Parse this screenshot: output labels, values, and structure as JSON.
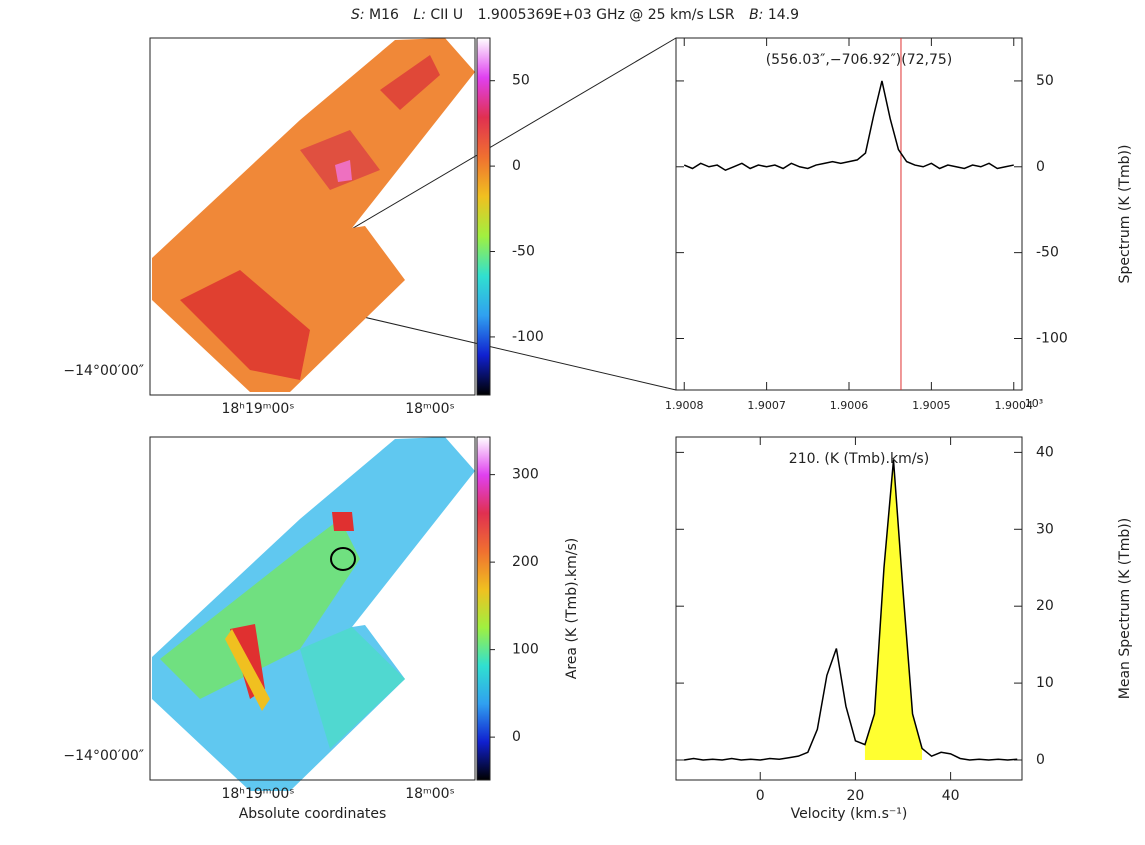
{
  "header": {
    "source_key": "S:",
    "source": "M16",
    "line_key": "L:",
    "line": "CII U",
    "frequency": "1.9005369E+03 GHz @ 25 km/s LSR",
    "beam_key": "B:",
    "beam": "14.9"
  },
  "chart_data": [
    {
      "type": "map",
      "xtick_labels": [
        "18ʰ19ᵐ00ˢ",
        "18ᵐ00ˢ"
      ],
      "ytick_labels": [
        "−14°00′00″"
      ],
      "clim": [
        -134,
        75
      ],
      "cticks": [
        50,
        0,
        -50,
        -100
      ],
      "colormap": [
        "#ffffff",
        "#e040f0",
        "#e03050",
        "#f07030",
        "#f0c020",
        "#a0f040",
        "#30e0d0",
        "#30a0f0",
        "#1020d0",
        "#000000"
      ]
    },
    {
      "type": "line",
      "annotation": "(556.03″,−706.92″)(72,75)",
      "ylabel": "Spectrum (K (Tmb))",
      "color": "#000000",
      "x": [
        1.9008,
        1.90079,
        1.90078,
        1.90077,
        1.90076,
        1.90075,
        1.90074,
        1.90073,
        1.90072,
        1.90071,
        1.9007,
        1.90069,
        1.90068,
        1.90067,
        1.90066,
        1.90065,
        1.90064,
        1.90063,
        1.90062,
        1.90061,
        1.9006,
        1.90059,
        1.90058,
        1.90057,
        1.90056,
        1.90055,
        1.90054,
        1.90053,
        1.90052,
        1.90051,
        1.9005,
        1.90049,
        1.90048,
        1.90047,
        1.90046,
        1.90045,
        1.90044,
        1.90043,
        1.90042,
        1.90041,
        1.9004
      ],
      "values": [
        1,
        -1,
        2,
        0,
        1,
        -2,
        0,
        2,
        -1,
        1,
        0,
        1,
        -1,
        2,
        0,
        -1,
        1,
        2,
        3,
        2,
        3,
        4,
        8,
        30,
        50,
        28,
        10,
        3,
        1,
        0,
        2,
        -1,
        1,
        0,
        -1,
        1,
        0,
        2,
        -1,
        0,
        1
      ],
      "xlim": [
        1.90081,
        1.90039
      ],
      "xticks": [
        1.9008,
        1.9007,
        1.9006,
        1.9005,
        1.9004
      ],
      "xscale_label": "10³",
      "ylim": [
        -130,
        75
      ],
      "yticks": [
        50,
        0,
        -50,
        -100
      ],
      "marker_x": 1.9005369,
      "marker_color": "#e03030"
    },
    {
      "type": "map",
      "xtick_labels": [
        "18ʰ19ᵐ00ˢ",
        "18ᵐ00ˢ"
      ],
      "ytick_labels": [
        "−14°00′00″"
      ],
      "xlabel": "Absolute coordinates",
      "clabel": "Area (K (Tmb).km/s)",
      "clim": [
        -49,
        343
      ],
      "cticks": [
        300,
        200,
        100,
        0
      ],
      "colormap": [
        "#ffffff",
        "#e040f0",
        "#e03050",
        "#f07030",
        "#f0c020",
        "#a0f040",
        "#30e0d0",
        "#30a0f0",
        "#1020d0",
        "#000000"
      ]
    },
    {
      "type": "line",
      "annotation": "210. (K (Tmb).km/s)",
      "xlabel": "Velocity (km.s⁻¹)",
      "ylabel": "Mean Spectrum (K (Tmb))",
      "color": "#000000",
      "x": [
        -16,
        -14,
        -12,
        -10,
        -8,
        -6,
        -4,
        -2,
        0,
        2,
        4,
        6,
        8,
        10,
        12,
        14,
        16,
        18,
        20,
        22,
        24,
        26,
        28,
        30,
        32,
        34,
        36,
        38,
        40,
        42,
        44,
        46,
        48,
        50,
        52,
        54
      ],
      "values": [
        0,
        0.2,
        0,
        0.1,
        0,
        0.2,
        0,
        0.1,
        0,
        0.2,
        0.1,
        0.3,
        0.5,
        1,
        4,
        11,
        14.5,
        7,
        2.5,
        2,
        6,
        25,
        39,
        22,
        6,
        1.5,
        0.5,
        1,
        0.8,
        0.2,
        0,
        0.1,
        0,
        0.1,
        0,
        0.1
      ],
      "xlim": [
        -17.7,
        55
      ],
      "xticks": [
        0,
        20,
        40
      ],
      "ylim": [
        -2.6,
        42
      ],
      "yticks": [
        0,
        10,
        20,
        30,
        40
      ],
      "window": [
        22,
        34
      ],
      "window_color": "#ffff30"
    }
  ]
}
